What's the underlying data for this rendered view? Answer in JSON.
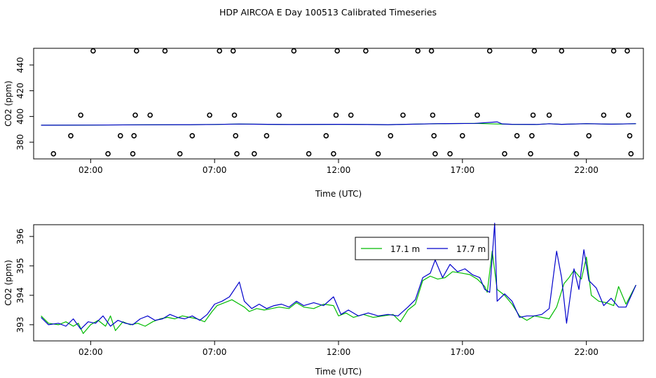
{
  "title": "HDP AIRCOA E  Day 100513  Calibrated Timeseries",
  "chart_data": [
    {
      "type": "scatter",
      "xlabel": "Time (UTC)",
      "ylabel": "CO2 (ppm)",
      "xlim": [
        -0.3,
        24.3
      ],
      "ylim": [
        367,
        453
      ],
      "x_ticks": [
        2,
        7,
        12,
        17,
        22
      ],
      "x_tick_labels": [
        "02:00",
        "07:00",
        "12:00",
        "17:00",
        "22:00"
      ],
      "y_ticks": [
        380,
        400,
        420,
        440
      ],
      "y_tick_labels": [
        "380",
        "400",
        "420",
        "440"
      ],
      "grid": false,
      "series": [
        {
          "name": "",
          "color": "#000000",
          "marker": "open-circle",
          "points": [
            [
              0.5,
              371
            ],
            [
              1.2,
              385
            ],
            [
              1.6,
              401
            ],
            [
              2.1,
              451
            ],
            [
              2.7,
              371
            ],
            [
              3.2,
              385
            ],
            [
              3.7,
              371
            ],
            [
              3.75,
              385
            ],
            [
              3.8,
              401
            ],
            [
              3.85,
              451
            ],
            [
              4.4,
              401
            ],
            [
              5.0,
              451
            ],
            [
              5.6,
              371
            ],
            [
              6.1,
              385
            ],
            [
              6.8,
              401
            ],
            [
              7.2,
              451
            ],
            [
              7.75,
              451
            ],
            [
              7.8,
              401
            ],
            [
              7.85,
              385
            ],
            [
              7.9,
              371
            ],
            [
              8.6,
              371
            ],
            [
              9.1,
              385
            ],
            [
              9.6,
              401
            ],
            [
              10.2,
              451
            ],
            [
              10.8,
              371
            ],
            [
              11.5,
              385
            ],
            [
              11.8,
              371
            ],
            [
              11.9,
              401
            ],
            [
              11.95,
              451
            ],
            [
              12.5,
              401
            ],
            [
              13.1,
              451
            ],
            [
              13.6,
              371
            ],
            [
              14.1,
              385
            ],
            [
              14.6,
              401
            ],
            [
              15.2,
              451
            ],
            [
              15.75,
              451
            ],
            [
              15.8,
              401
            ],
            [
              15.85,
              385
            ],
            [
              15.9,
              371
            ],
            [
              16.5,
              371
            ],
            [
              17.0,
              385
            ],
            [
              17.6,
              401
            ],
            [
              18.1,
              451
            ],
            [
              18.7,
              371
            ],
            [
              19.2,
              385
            ],
            [
              19.75,
              371
            ],
            [
              19.8,
              385
            ],
            [
              19.85,
              401
            ],
            [
              19.9,
              451
            ],
            [
              20.5,
              401
            ],
            [
              21.0,
              451
            ],
            [
              21.6,
              371
            ],
            [
              22.1,
              385
            ],
            [
              22.7,
              401
            ],
            [
              23.1,
              451
            ],
            [
              23.65,
              451
            ],
            [
              23.7,
              401
            ],
            [
              23.75,
              385
            ],
            [
              23.8,
              371
            ]
          ]
        },
        {
          "name": "",
          "color": "#00bb00",
          "marker": "line",
          "points": [
            [
              0,
              393.2
            ],
            [
              2,
              393.3
            ],
            [
              4,
              393.5
            ],
            [
              6,
              393.6
            ],
            [
              7,
              393.8
            ],
            [
              8,
              394.1
            ],
            [
              10,
              393.7
            ],
            [
              12,
              393.9
            ],
            [
              14,
              393.6
            ],
            [
              16,
              394.4
            ],
            [
              17.5,
              394.6
            ],
            [
              19,
              393.9
            ],
            [
              20,
              393.8
            ],
            [
              20.5,
              394.3
            ],
            [
              21,
              393.9
            ],
            [
              22,
              394.4
            ],
            [
              23,
              394.0
            ],
            [
              24,
              394.4
            ]
          ]
        },
        {
          "name": "",
          "color": "#0000cc",
          "marker": "line",
          "points": [
            [
              0,
              393.2
            ],
            [
              2,
              393.3
            ],
            [
              4,
              393.5
            ],
            [
              6,
              393.6
            ],
            [
              7,
              393.8
            ],
            [
              8,
              394.1
            ],
            [
              10,
              393.7
            ],
            [
              12,
              393.9
            ],
            [
              14,
              393.6
            ],
            [
              16,
              394.4
            ],
            [
              17.5,
              394.6
            ],
            [
              18.4,
              395.8
            ],
            [
              18.6,
              394.2
            ],
            [
              19,
              393.9
            ],
            [
              20,
              393.8
            ],
            [
              20.5,
              394.3
            ],
            [
              21,
              393.9
            ],
            [
              22,
              394.4
            ],
            [
              23,
              394.0
            ],
            [
              24,
              394.4
            ]
          ]
        }
      ]
    },
    {
      "type": "line",
      "xlabel": "Time (UTC)",
      "ylabel": "CO2 (ppm)",
      "xlim": [
        -0.3,
        24.3
      ],
      "ylim": [
        392.45,
        396.4
      ],
      "x_ticks": [
        2,
        7,
        12,
        17,
        22
      ],
      "x_tick_labels": [
        "02:00",
        "07:00",
        "12:00",
        "17:00",
        "22:00"
      ],
      "y_ticks": [
        393,
        394,
        395,
        396
      ],
      "y_tick_labels": [
        "393",
        "394",
        "395",
        "396"
      ],
      "grid": false,
      "legend": {
        "placement": "top-center"
      },
      "series": [
        {
          "name": "17.1 m",
          "color": "#00bb00",
          "points": [
            [
              0,
              393.3
            ],
            [
              0.3,
              393.05
            ],
            [
              0.7,
              393.0
            ],
            [
              1.0,
              393.1
            ],
            [
              1.3,
              392.95
            ],
            [
              1.5,
              393.05
            ],
            [
              1.7,
              392.7
            ],
            [
              2.0,
              393.0
            ],
            [
              2.3,
              393.15
            ],
            [
              2.6,
              392.95
            ],
            [
              2.8,
              393.3
            ],
            [
              3.0,
              392.8
            ],
            [
              3.3,
              393.1
            ],
            [
              3.6,
              393.0
            ],
            [
              3.9,
              393.05
            ],
            [
              4.2,
              392.95
            ],
            [
              4.5,
              393.1
            ],
            [
              4.8,
              393.2
            ],
            [
              5.1,
              393.25
            ],
            [
              5.4,
              393.2
            ],
            [
              5.7,
              393.3
            ],
            [
              6.0,
              393.25
            ],
            [
              6.3,
              393.2
            ],
            [
              6.6,
              393.1
            ],
            [
              6.9,
              393.45
            ],
            [
              7.1,
              393.65
            ],
            [
              7.4,
              393.75
            ],
            [
              7.7,
              393.85
            ],
            [
              8.0,
              393.7
            ],
            [
              8.2,
              393.6
            ],
            [
              8.4,
              393.45
            ],
            [
              8.7,
              393.55
            ],
            [
              9.0,
              393.5
            ],
            [
              9.3,
              393.55
            ],
            [
              9.6,
              393.6
            ],
            [
              10.0,
              393.55
            ],
            [
              10.3,
              393.75
            ],
            [
              10.6,
              393.6
            ],
            [
              11.0,
              393.55
            ],
            [
              11.4,
              393.7
            ],
            [
              11.8,
              393.65
            ],
            [
              12.0,
              393.3
            ],
            [
              12.3,
              393.4
            ],
            [
              12.6,
              393.25
            ],
            [
              13.0,
              393.35
            ],
            [
              13.4,
              393.25
            ],
            [
              13.8,
              393.3
            ],
            [
              14.2,
              393.35
            ],
            [
              14.5,
              393.1
            ],
            [
              14.8,
              393.5
            ],
            [
              15.1,
              393.7
            ],
            [
              15.4,
              394.5
            ],
            [
              15.7,
              394.65
            ],
            [
              16.0,
              394.55
            ],
            [
              16.3,
              394.6
            ],
            [
              16.6,
              394.8
            ],
            [
              17.0,
              394.75
            ],
            [
              17.3,
              394.7
            ],
            [
              17.6,
              394.55
            ],
            [
              17.9,
              394.3
            ],
            [
              18.0,
              394.1
            ],
            [
              18.2,
              395.5
            ],
            [
              18.4,
              394.2
            ],
            [
              18.7,
              394.0
            ],
            [
              19.0,
              393.7
            ],
            [
              19.3,
              393.3
            ],
            [
              19.6,
              393.15
            ],
            [
              19.9,
              393.3
            ],
            [
              20.2,
              393.25
            ],
            [
              20.5,
              393.2
            ],
            [
              20.8,
              393.6
            ],
            [
              21.1,
              394.4
            ],
            [
              21.3,
              394.6
            ],
            [
              21.5,
              394.85
            ],
            [
              21.8,
              394.55
            ],
            [
              22.0,
              395.3
            ],
            [
              22.2,
              394.0
            ],
            [
              22.5,
              393.8
            ],
            [
              22.8,
              393.75
            ],
            [
              23.1,
              393.65
            ],
            [
              23.3,
              394.3
            ],
            [
              23.6,
              393.7
            ],
            [
              24.0,
              394.35
            ]
          ]
        },
        {
          "name": "17.7 m",
          "color": "#0000cc",
          "points": [
            [
              0,
              393.25
            ],
            [
              0.3,
              393.0
            ],
            [
              0.7,
              393.05
            ],
            [
              1.0,
              392.95
            ],
            [
              1.3,
              393.2
            ],
            [
              1.6,
              392.85
            ],
            [
              1.9,
              393.1
            ],
            [
              2.2,
              393.05
            ],
            [
              2.5,
              393.3
            ],
            [
              2.8,
              392.95
            ],
            [
              3.1,
              393.15
            ],
            [
              3.4,
              393.05
            ],
            [
              3.7,
              393.0
            ],
            [
              4.0,
              393.2
            ],
            [
              4.3,
              393.3
            ],
            [
              4.6,
              393.15
            ],
            [
              4.9,
              393.2
            ],
            [
              5.2,
              393.35
            ],
            [
              5.5,
              393.25
            ],
            [
              5.8,
              393.2
            ],
            [
              6.1,
              393.3
            ],
            [
              6.4,
              393.15
            ],
            [
              6.7,
              393.35
            ],
            [
              7.0,
              393.7
            ],
            [
              7.3,
              393.8
            ],
            [
              7.6,
              393.95
            ],
            [
              8.0,
              394.45
            ],
            [
              8.2,
              393.8
            ],
            [
              8.5,
              393.55
            ],
            [
              8.8,
              393.7
            ],
            [
              9.1,
              393.55
            ],
            [
              9.4,
              393.65
            ],
            [
              9.7,
              393.7
            ],
            [
              10.0,
              393.6
            ],
            [
              10.3,
              393.8
            ],
            [
              10.6,
              393.65
            ],
            [
              11.0,
              393.75
            ],
            [
              11.4,
              393.65
            ],
            [
              11.8,
              393.95
            ],
            [
              12.1,
              393.35
            ],
            [
              12.4,
              393.5
            ],
            [
              12.8,
              393.3
            ],
            [
              13.2,
              393.4
            ],
            [
              13.6,
              393.3
            ],
            [
              14.0,
              393.35
            ],
            [
              14.4,
              393.3
            ],
            [
              14.8,
              393.6
            ],
            [
              15.1,
              393.85
            ],
            [
              15.4,
              394.6
            ],
            [
              15.7,
              394.75
            ],
            [
              15.9,
              395.2
            ],
            [
              16.2,
              394.6
            ],
            [
              16.5,
              395.05
            ],
            [
              16.8,
              394.8
            ],
            [
              17.1,
              394.9
            ],
            [
              17.4,
              394.7
            ],
            [
              17.7,
              394.6
            ],
            [
              17.9,
              394.2
            ],
            [
              18.1,
              394.1
            ],
            [
              18.3,
              396.45
            ],
            [
              18.4,
              393.8
            ],
            [
              18.7,
              394.05
            ],
            [
              19.0,
              393.8
            ],
            [
              19.3,
              393.25
            ],
            [
              19.6,
              393.3
            ],
            [
              19.9,
              393.3
            ],
            [
              20.2,
              393.35
            ],
            [
              20.5,
              393.55
            ],
            [
              20.8,
              395.5
            ],
            [
              21.0,
              394.6
            ],
            [
              21.2,
              393.05
            ],
            [
              21.5,
              394.9
            ],
            [
              21.7,
              394.2
            ],
            [
              21.9,
              395.55
            ],
            [
              22.1,
              394.5
            ],
            [
              22.4,
              394.25
            ],
            [
              22.7,
              393.65
            ],
            [
              23.0,
              393.9
            ],
            [
              23.3,
              393.6
            ],
            [
              23.6,
              393.6
            ],
            [
              24.0,
              394.35
            ]
          ]
        }
      ]
    }
  ]
}
